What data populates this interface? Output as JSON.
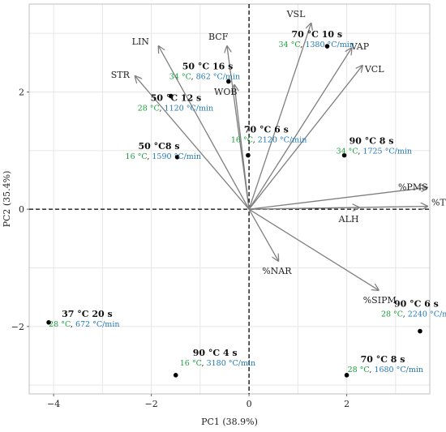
{
  "chart_data": {
    "type": "scatter",
    "subtype": "pca-biplot",
    "xlabel": "PC1 (38.9%)",
    "ylabel": "PC2 (35.4%)",
    "xlim": [
      -4.5,
      3.7
    ],
    "ylim": [
      -3.15,
      3.5
    ],
    "xticks": [
      -4,
      -2,
      0,
      2
    ],
    "yticks": [
      -2,
      0,
      2
    ],
    "grid": true,
    "colors": {
      "grid": "#e6e6e6",
      "axis": "#888888",
      "vector": "#7f7f7f",
      "point": "#000000",
      "temp": "#1a9d3a",
      "rate": "#1f77b4"
    },
    "points": [
      {
        "name": "50 °C 16 s",
        "temp": "34 °C",
        "rate": "862 °C/min",
        "x": -0.42,
        "y": 2.18
      },
      {
        "name": "70 °C 10 s",
        "temp": "34 °C",
        "rate": "1380 °C/min",
        "x": 1.6,
        "y": 2.78
      },
      {
        "name": "50 °C 12 s",
        "temp": "28 °C",
        "rate": "1120 °C/min",
        "x": -1.6,
        "y": 1.93
      },
      {
        "name": "70 °C 6 s",
        "temp": "16 °C",
        "rate": "2120 °C/min",
        "x": -0.02,
        "y": 0.92
      },
      {
        "name": "90 °C 8 s",
        "temp": "34 °C",
        "rate": "1725 °C/min",
        "x": 1.95,
        "y": 0.92
      },
      {
        "name": "50 °C8 s",
        "temp": "16 °C",
        "rate": "1590 °C/min",
        "x": -1.47,
        "y": 0.89
      },
      {
        "name": "37 °C 20 s",
        "temp": "28 °C",
        "rate": "672 °C/min",
        "x": -4.1,
        "y": -1.93
      },
      {
        "name": "90 °C 6 s",
        "temp": "28 °C",
        "rate": "2240 °C/min",
        "x": 3.5,
        "y": -2.08
      },
      {
        "name": "90 °C 4 s",
        "temp": "16 °C",
        "rate": "3180 °C/min",
        "x": -1.5,
        "y": -2.83
      },
      {
        "name": "70 °C 8 s",
        "temp": "28 °C",
        "rate": "1680 °C/min",
        "x": 2.0,
        "y": -2.83
      }
    ],
    "vectors": [
      {
        "name": "VSL",
        "x": 1.27,
        "y": 3.17
      },
      {
        "name": "VAP",
        "x": 2.1,
        "y": 2.75
      },
      {
        "name": "VCL",
        "x": 2.32,
        "y": 2.45
      },
      {
        "name": "BCF",
        "x": -0.45,
        "y": 2.78
      },
      {
        "name": "LIN",
        "x": -1.85,
        "y": 2.78
      },
      {
        "name": "STR",
        "x": -2.33,
        "y": 2.27
      },
      {
        "name": "WOB",
        "x": -0.3,
        "y": 2.12
      },
      {
        "name": "%PMS",
        "x": 3.65,
        "y": 0.37
      },
      {
        "name": "%TMS",
        "x": 3.65,
        "y": 0.05
      },
      {
        "name": "ALH",
        "x": 2.25,
        "y": 0.03
      },
      {
        "name": "%NAR",
        "x": 0.6,
        "y": -0.88
      },
      {
        "name": "%SIPM",
        "x": 2.65,
        "y": -1.38
      }
    ]
  }
}
